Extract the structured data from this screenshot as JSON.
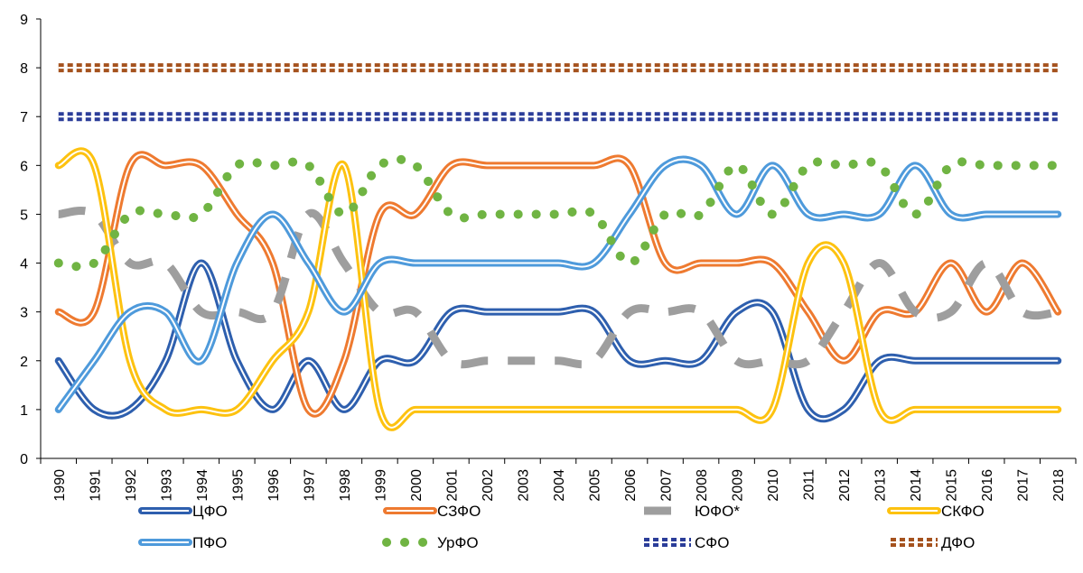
{
  "chart_data": {
    "type": "line",
    "xlabel": "",
    "ylabel": "",
    "ylim": [
      0,
      9
    ],
    "yticks": [
      "0",
      "1",
      "2",
      "3",
      "4",
      "5",
      "6",
      "7",
      "8",
      "9"
    ],
    "grid": false,
    "legend_position": "bottom",
    "categories": [
      "1990",
      "1991",
      "1992",
      "1993",
      "1994",
      "1995",
      "1996",
      "1997",
      "1998",
      "1999",
      "2000",
      "2001",
      "2002",
      "2003",
      "2004",
      "2005",
      "2006",
      "2007",
      "2008",
      "2009",
      "2010",
      "2011",
      "2012",
      "2013",
      "2014",
      "2015",
      "2016",
      "2017",
      "2018"
    ],
    "series": [
      {
        "name": "ЦФО",
        "style": "double",
        "color": "#2E5FAE",
        "values": [
          2,
          1,
          1,
          2,
          4,
          2,
          1,
          2,
          1,
          2,
          2,
          3,
          3,
          3,
          3,
          3,
          2,
          2,
          2,
          3,
          3,
          1,
          1,
          2,
          2,
          2,
          2,
          2,
          2
        ]
      },
      {
        "name": "СЗФО",
        "style": "double",
        "color": "#EE7A30",
        "values": [
          3,
          3,
          6,
          6,
          6,
          5,
          4,
          1,
          2,
          5,
          5,
          6,
          6,
          6,
          6,
          6,
          6,
          4,
          4,
          4,
          4,
          3,
          2,
          3,
          3,
          4,
          3,
          4,
          3
        ]
      },
      {
        "name": "ЮФО*",
        "style": "dash",
        "color": "#9E9E9E",
        "values": [
          5,
          5,
          4,
          4,
          3,
          3,
          3,
          5,
          4,
          3,
          3,
          2,
          2,
          2,
          2,
          2,
          3,
          3,
          3,
          2,
          2,
          2,
          3,
          4,
          3,
          3,
          4,
          3,
          3
        ]
      },
      {
        "name": "СКФО",
        "style": "double",
        "color": "#FDC210",
        "values": [
          6,
          6,
          2,
          1,
          1,
          1,
          2,
          3,
          6,
          1,
          1,
          1,
          1,
          1,
          1,
          1,
          1,
          1,
          1,
          1,
          1,
          4,
          4,
          1,
          1,
          1,
          1,
          1,
          1
        ]
      },
      {
        "name": "ПФО",
        "style": "double",
        "color": "#4E9ADB",
        "values": [
          1,
          2,
          3,
          3,
          2,
          4,
          5,
          4,
          3,
          4,
          4,
          4,
          4,
          4,
          4,
          4,
          5,
          6,
          6,
          5,
          6,
          5,
          5,
          5,
          6,
          5,
          5,
          5,
          5
        ]
      },
      {
        "name": "УрФО",
        "style": "dots",
        "color": "#70B443",
        "values": [
          4,
          4,
          5,
          5,
          5,
          6,
          6,
          6,
          5,
          6,
          6,
          5,
          5,
          5,
          5,
          5,
          4,
          5,
          5,
          6,
          5,
          6,
          6,
          6,
          5,
          6,
          6,
          6,
          6
        ]
      },
      {
        "name": "СФО",
        "style": "squares",
        "color": "#2B3D99",
        "values": [
          7,
          7,
          7,
          7,
          7,
          7,
          7,
          7,
          7,
          7,
          7,
          7,
          7,
          7,
          7,
          7,
          7,
          7,
          7,
          7,
          7,
          7,
          7,
          7,
          7,
          7,
          7,
          7,
          7
        ]
      },
      {
        "name": "ДФО",
        "style": "squares",
        "color": "#A5521E",
        "values": [
          8,
          8,
          8,
          8,
          8,
          8,
          8,
          8,
          8,
          8,
          8,
          8,
          8,
          8,
          8,
          8,
          8,
          8,
          8,
          8,
          8,
          8,
          8,
          8,
          8,
          8,
          8,
          8,
          8
        ]
      }
    ]
  }
}
